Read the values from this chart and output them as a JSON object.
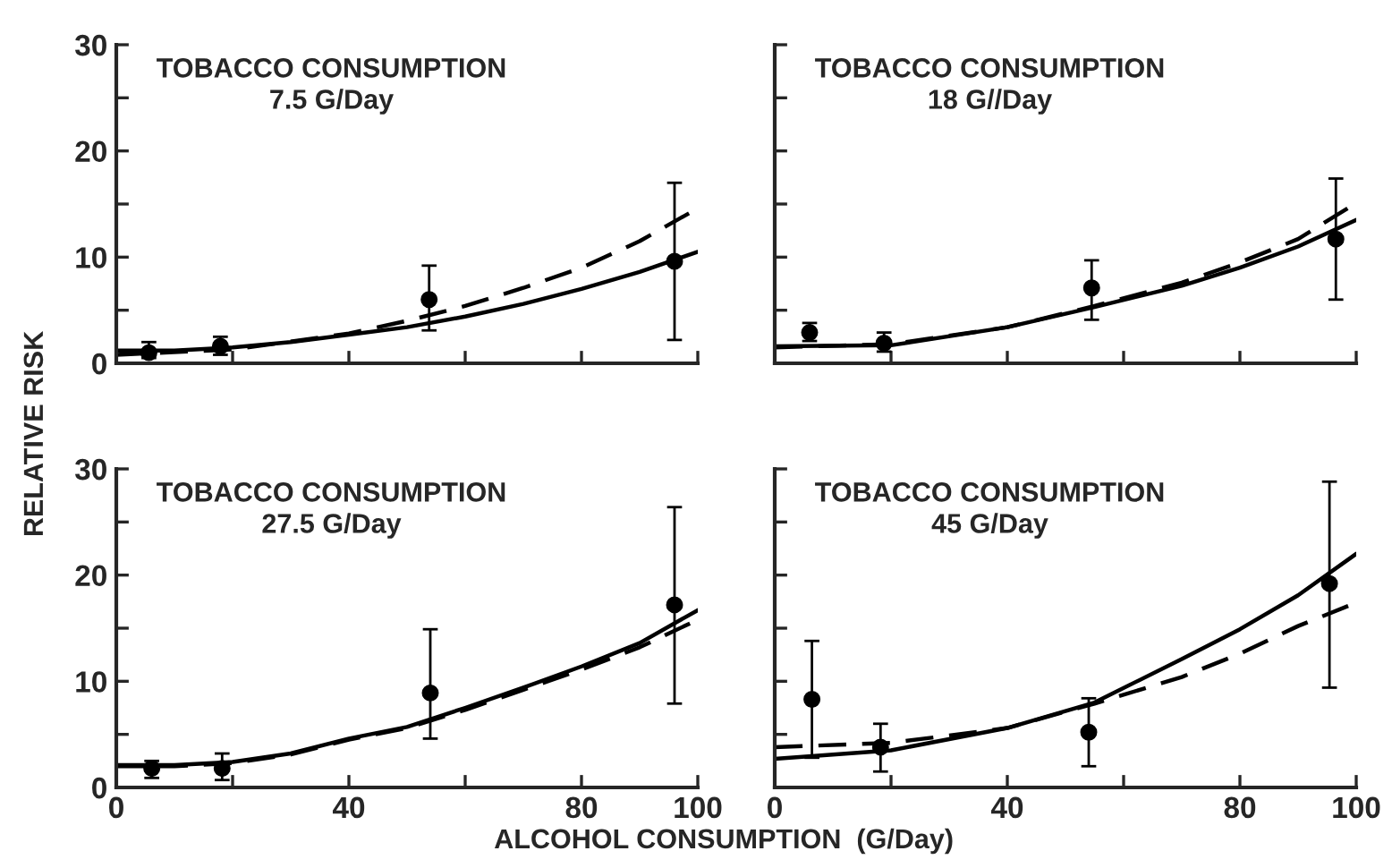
{
  "chart_data": [
    {
      "type": "line",
      "title": "TOBACCO CONSUMPTION\n7.5 G/Day",
      "ylabel": "RELATIVE RISK",
      "xlim": [
        0,
        100
      ],
      "ylim": [
        0,
        30
      ],
      "xticks": [
        {
          "value": 0,
          "label": null
        },
        {
          "value": 20,
          "label": null
        },
        {
          "value": 40,
          "label": null
        },
        {
          "value": 60,
          "label": null
        },
        {
          "value": 80,
          "label": null
        },
        {
          "value": 100,
          "label": null
        }
      ],
      "yticks": [
        0,
        {
          "value": 5,
          "label": null
        },
        10,
        {
          "value": 15,
          "label": null
        },
        20,
        {
          "value": 25,
          "label": null
        },
        30
      ],
      "tick_labels": "y",
      "series": [
        {
          "type": "scatter",
          "color": "#000000",
          "marker": "circle",
          "x": [
            5.6,
            17.9,
            53.8,
            96
          ],
          "values": [
            1.0,
            1.6,
            6.0,
            9.6
          ],
          "errors": [
            [
              0.5,
              2.0
            ],
            [
              0.8,
              2.5
            ],
            [
              3.1,
              9.2
            ],
            [
              2.2,
              17.0
            ]
          ]
        },
        {
          "color": "#000000",
          "line_style": "solid",
          "x": [
            0,
            10,
            20,
            30,
            40,
            50,
            60,
            70,
            80,
            90,
            100
          ],
          "values": [
            1.2,
            1.2,
            1.5,
            2.0,
            2.7,
            3.4,
            4.4,
            5.6,
            7.0,
            8.6,
            10.5
          ]
        },
        {
          "color": "#000000",
          "line_style": "dashed",
          "x": [
            0,
            20,
            40,
            50,
            60,
            70,
            80,
            90,
            100
          ],
          "values": [
            0.8,
            1.3,
            2.8,
            4.0,
            5.4,
            7.1,
            9.0,
            11.5,
            14.6
          ]
        }
      ]
    },
    {
      "type": "line",
      "title": "TOBACCO CONSUMPTION\n18 G//Day",
      "xlim": [
        0,
        100
      ],
      "ylim": [
        0,
        30
      ],
      "xticks": [
        {
          "value": 0,
          "label": null
        },
        {
          "value": 20,
          "label": null
        },
        {
          "value": 40,
          "label": null
        },
        {
          "value": 60,
          "label": null
        },
        {
          "value": 80,
          "label": null
        },
        {
          "value": 100,
          "label": null
        }
      ],
      "yticks": [
        {
          "value": 0,
          "label": null
        },
        {
          "value": 5,
          "label": null
        },
        {
          "value": 10,
          "label": null
        },
        {
          "value": 15,
          "label": null
        },
        {
          "value": 20,
          "label": null
        },
        {
          "value": 25,
          "label": null
        },
        {
          "value": 30,
          "label": null
        }
      ],
      "tick_labels": false,
      "series": [
        {
          "type": "scatter",
          "color": "#000000",
          "marker": "circle",
          "x": [
            6,
            18.8,
            54.5,
            96.5
          ],
          "values": [
            2.9,
            1.9,
            7.1,
            11.7
          ],
          "errors": [
            [
              2.1,
              3.8
            ],
            [
              1.1,
              2.9
            ],
            [
              4.1,
              9.7
            ],
            [
              6.0,
              17.4
            ]
          ]
        },
        {
          "color": "#000000",
          "line_style": "solid",
          "x": [
            0,
            20,
            40,
            55,
            70,
            80,
            90,
            100
          ],
          "values": [
            1.6,
            1.7,
            3.4,
            5.3,
            7.3,
            9.0,
            11.0,
            13.5
          ]
        },
        {
          "color": "#000000",
          "line_style": "dashed",
          "x": [
            0,
            20,
            40,
            55,
            70,
            80,
            90,
            100
          ],
          "values": [
            1.5,
            1.8,
            3.4,
            5.4,
            7.6,
            9.5,
            11.7,
            15.1
          ]
        }
      ]
    },
    {
      "type": "line",
      "title": "TOBACCO CONSUMPTION\n27.5 G/Day",
      "xlabel": "ALCOHOL CONSUMPTION  (G/Day)",
      "xlim": [
        0,
        100
      ],
      "ylim": [
        0,
        30
      ],
      "xticks": [
        0,
        {
          "value": 20,
          "label": null
        },
        40,
        {
          "value": 60,
          "label": null
        },
        80,
        100
      ],
      "yticks": [
        0,
        {
          "value": 5,
          "label": null
        },
        10,
        {
          "value": 15,
          "label": null
        },
        20,
        {
          "value": 25,
          "label": null
        },
        30
      ],
      "series": [
        {
          "type": "scatter",
          "color": "#000000",
          "marker": "circle",
          "x": [
            6.1,
            18.2,
            54,
            96
          ],
          "values": [
            1.8,
            1.8,
            8.9,
            17.2
          ],
          "errors": [
            [
              0.9,
              2.5
            ],
            [
              0.7,
              3.2
            ],
            [
              4.6,
              14.9
            ],
            [
              7.9,
              26.4
            ]
          ]
        },
        {
          "color": "#000000",
          "line_style": "solid",
          "x": [
            0,
            10,
            20,
            30,
            40,
            50,
            60,
            70,
            80,
            90,
            100
          ],
          "values": [
            2.1,
            2.1,
            2.4,
            3.2,
            4.6,
            5.7,
            7.5,
            9.4,
            11.4,
            13.6,
            16.7
          ]
        },
        {
          "color": "#000000",
          "line_style": "dashed",
          "x": [
            0,
            10,
            20,
            30,
            40,
            50,
            60,
            70,
            80,
            90,
            100
          ],
          "values": [
            2.0,
            2.0,
            2.3,
            3.1,
            4.5,
            5.6,
            7.3,
            9.2,
            11.1,
            13.2,
            15.8
          ]
        }
      ]
    },
    {
      "type": "line",
      "title": "TOBACCO CONSUMPTION\n45 G/Day",
      "xlim": [
        0,
        100
      ],
      "ylim": [
        0,
        30
      ],
      "xticks": [
        0,
        {
          "value": 20,
          "label": null
        },
        40,
        {
          "value": 60,
          "label": null
        },
        80,
        100
      ],
      "yticks": [
        {
          "value": 0,
          "label": null
        },
        {
          "value": 5,
          "label": null
        },
        {
          "value": 10,
          "label": null
        },
        {
          "value": 15,
          "label": null
        },
        {
          "value": 20,
          "label": null
        },
        {
          "value": 25,
          "label": null
        },
        {
          "value": 30,
          "label": null
        }
      ],
      "tick_labels": "x",
      "series": [
        {
          "type": "scatter",
          "color": "#000000",
          "marker": "circle",
          "x": [
            6.4,
            18.2,
            54,
            95.4
          ],
          "values": [
            8.3,
            3.8,
            5.2,
            19.2
          ],
          "errors": [
            [
              2.8,
              13.8
            ],
            [
              1.5,
              6.0
            ],
            [
              2.0,
              8.4
            ],
            [
              9.4,
              28.8
            ]
          ]
        },
        {
          "color": "#000000",
          "line_style": "solid",
          "x": [
            0,
            20,
            40,
            55,
            70,
            80,
            90,
            100
          ],
          "values": [
            2.7,
            3.5,
            5.6,
            8.0,
            12.1,
            14.9,
            18.1,
            22.0
          ]
        },
        {
          "color": "#000000",
          "line_style": "dashed",
          "x": [
            0,
            20,
            40,
            55,
            70,
            80,
            90,
            100
          ],
          "values": [
            3.8,
            4.2,
            5.6,
            7.9,
            10.4,
            12.6,
            15.2,
            17.4
          ]
        }
      ]
    }
  ]
}
